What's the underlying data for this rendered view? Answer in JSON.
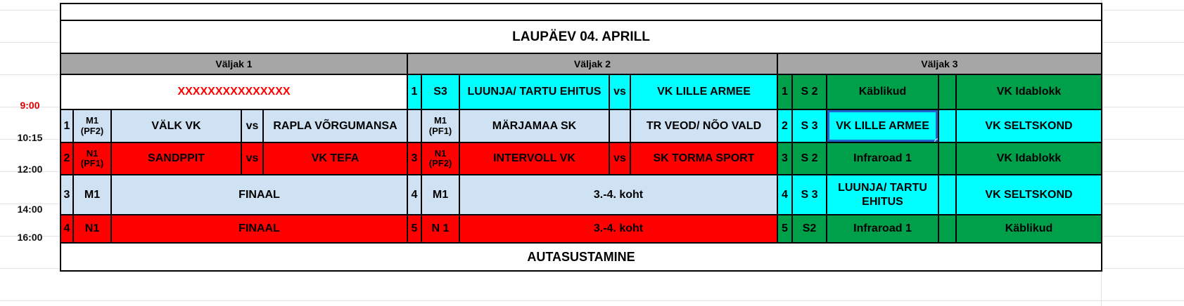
{
  "colors": {
    "header": "#a6a6a6",
    "m_rows": "#cfe2f3",
    "n_rows": "#ff0000",
    "s3_rows": "#00ffff",
    "s2_rows": "#00a04a",
    "highlight_text": "#ff0000",
    "selection": "#1e66d0"
  },
  "title": "LAUPÄEV 04. APRILL",
  "footer": "AUTASUSTAMINE",
  "times": [
    "9:00",
    "10:15",
    "12:00",
    "14:00",
    "16:00"
  ],
  "fields": [
    "Väljak 1",
    "Väljak 2",
    "Väljak 3"
  ],
  "v1": {
    "row1": "XXXXXXXXXXXXXXX",
    "row2": {
      "num": "1",
      "cat": "M1 (PF2)",
      "team1": "VÄLK VK",
      "vs": "vs",
      "team2": "RAPLA VÕRGUMANSA"
    },
    "row3": {
      "num": "2",
      "cat": "N1 (PF1)",
      "team1": "SANDPPIT",
      "vs": "vs",
      "team2": "VK TEFA"
    },
    "row4": {
      "num": "3",
      "cat": "M1",
      "match": "FINAAL"
    },
    "row5": {
      "num": "4",
      "cat": "N1",
      "match": "FINAAL"
    }
  },
  "v2": {
    "row1": {
      "num": "1",
      "cat": "S3",
      "team1": "LUUNJA/ TARTU EHITUS",
      "vs": "vs",
      "team2": "VK LILLE ARMEE"
    },
    "row2": {
      "num": "",
      "cat": "M1 (PF1)",
      "team1": "MÄRJAMAA SK",
      "vs": "",
      "team2": "TR VEOD/ NÕO VALD"
    },
    "row3": {
      "num": "3",
      "cat": "N1 (PF2)",
      "team1": "INTERVOLL VK",
      "vs": "vs",
      "team2": "SK TORMA SPORT"
    },
    "row4": {
      "num": "4",
      "cat": "M1",
      "match": "3.-4. koht"
    },
    "row5": {
      "num": "5",
      "cat": "N 1",
      "match": "3.-4. koht"
    }
  },
  "v3": {
    "row1": {
      "num": "1",
      "cat": "S 2",
      "team1": "Käblikud",
      "vs": "",
      "team2": "VK Idablokk"
    },
    "row2": {
      "num": "2",
      "cat": "S 3",
      "team1": "VK LILLE ARMEE",
      "vs": "",
      "team2": "VK SELTSKOND"
    },
    "row3": {
      "num": "3",
      "cat": "S 2",
      "team1": "Infraroad 1",
      "vs": "",
      "team2": "VK Idablokk"
    },
    "row4": {
      "num": "4",
      "cat": "S 3",
      "team1": "LUUNJA/ TARTU EHITUS",
      "vs": "",
      "team2": "VK SELTSKOND"
    },
    "row5": {
      "num": "5",
      "cat": "S2",
      "team1": "Infraroad 1",
      "vs": "",
      "team2": "Käblikud"
    }
  }
}
